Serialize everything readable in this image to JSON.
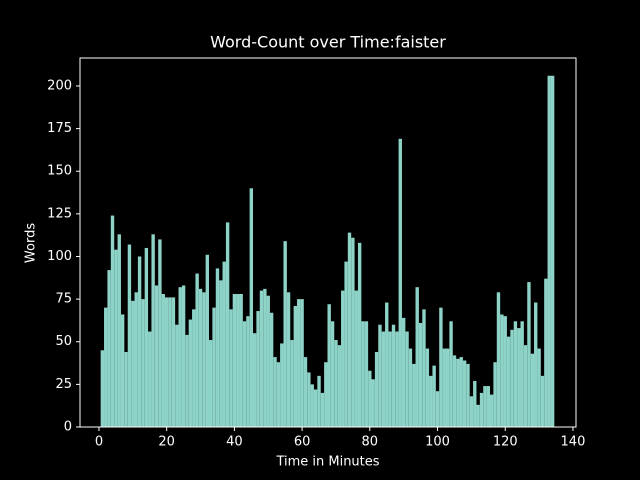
{
  "chart_data": {
    "type": "bar",
    "title": "Word-Count over Time:faister",
    "x_label": "Time in Minutes",
    "y_label": "Words",
    "x": [
      1,
      2,
      3,
      4,
      5,
      6,
      7,
      8,
      9,
      10,
      11,
      12,
      13,
      14,
      15,
      16,
      17,
      18,
      19,
      20,
      21,
      22,
      23,
      24,
      25,
      26,
      27,
      28,
      29,
      30,
      31,
      32,
      33,
      34,
      35,
      36,
      37,
      38,
      39,
      40,
      41,
      42,
      43,
      44,
      45,
      46,
      47,
      48,
      49,
      50,
      51,
      52,
      53,
      54,
      55,
      56,
      57,
      58,
      59,
      60,
      61,
      62,
      63,
      64,
      65,
      66,
      67,
      68,
      69,
      70,
      71,
      72,
      73,
      74,
      75,
      76,
      77,
      78,
      79,
      80,
      81,
      82,
      83,
      84,
      85,
      86,
      87,
      88,
      89,
      90,
      91,
      92,
      93,
      94,
      95,
      96,
      97,
      98,
      99,
      100,
      101,
      102,
      103,
      104,
      105,
      106,
      107,
      108,
      109,
      110,
      111,
      112,
      113,
      114,
      115,
      116,
      117,
      118,
      119,
      120,
      121,
      122,
      123,
      124,
      125,
      126,
      127,
      128,
      129,
      130,
      131,
      132,
      133,
      134
    ],
    "values": [
      45,
      70,
      92,
      124,
      104,
      113,
      66,
      44,
      107,
      74,
      79,
      100,
      75,
      105,
      56,
      113,
      83,
      110,
      78,
      76,
      76,
      76,
      60,
      82,
      83,
      54,
      63,
      69,
      90,
      81,
      79,
      101,
      51,
      70,
      93,
      86,
      97,
      120,
      69,
      78,
      78,
      78,
      62,
      65,
      140,
      55,
      68,
      80,
      81,
      77,
      67,
      41,
      38,
      49,
      109,
      79,
      51,
      71,
      75,
      75,
      41,
      32,
      25,
      22,
      30,
      20,
      38,
      72,
      62,
      51,
      48,
      80,
      97,
      114,
      111,
      80,
      108,
      62,
      62,
      33,
      28,
      44,
      60,
      56,
      73,
      56,
      60,
      56,
      169,
      64,
      56,
      46,
      37,
      82,
      61,
      69,
      46,
      30,
      36,
      21,
      70,
      46,
      46,
      62,
      42,
      40,
      41,
      39,
      37,
      18,
      27,
      13,
      20,
      24,
      24,
      19,
      38,
      79,
      66,
      65,
      53,
      57,
      62,
      58,
      62,
      48,
      85,
      43,
      73,
      46,
      30,
      87,
      206,
      206
    ],
    "color": "#8dd3c7",
    "xlim": [
      -5.6,
      140.9
    ],
    "ylim": [
      0,
      216.4
    ],
    "xticks": [
      0,
      20,
      40,
      60,
      80,
      100,
      120,
      140
    ],
    "yticks": [
      0,
      25,
      50,
      75,
      100,
      125,
      150,
      175,
      200
    ]
  }
}
